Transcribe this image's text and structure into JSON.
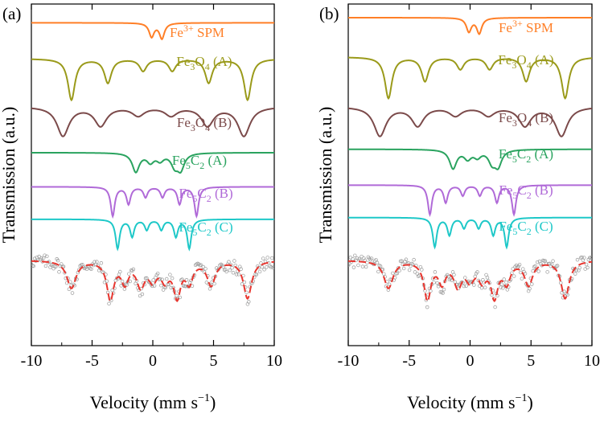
{
  "chart_data": {
    "type": "line",
    "xlabel": "Velocity (mm s",
    "xlabel_sup": "−1",
    "xlabel_close": ")",
    "ylabel": "Transmission (a.u.)",
    "xlim": [
      -10,
      10
    ],
    "xticks": [
      -10,
      -5,
      0,
      5,
      10
    ],
    "tick_labels": [
      "-10",
      "-5",
      "0",
      "5",
      "10"
    ],
    "panels": [
      {
        "label": "(a)",
        "components": [
          {
            "name": "Fe3+ SPM",
            "base": "Fe",
            "sup": "3+",
            "rest": " SPM",
            "color": "#ff7f27",
            "baseline": 0.945,
            "peaks": [
              [
                -0.1,
                0.04,
                0.25
              ],
              [
                0.75,
                0.045,
                0.25
              ]
            ]
          },
          {
            "name": "Fe3O4 (A)",
            "base": "Fe",
            "sub1": "3",
            "mid": "O",
            "sub2": "4",
            "tail": " (A)",
            "color": "#9a9a1a",
            "baseline": 0.84,
            "peaks": [
              [
                -6.7,
                0.12,
                0.35
              ],
              [
                -3.7,
                0.07,
                0.35
              ],
              [
                -0.8,
                0.035,
                0.35
              ],
              [
                1.6,
                0.035,
                0.35
              ],
              [
                4.6,
                0.07,
                0.35
              ],
              [
                7.8,
                0.12,
                0.35
              ]
            ]
          },
          {
            "name": "Fe3O4 (B)",
            "base": "Fe",
            "sub1": "3",
            "mid": "O",
            "sub2": "4",
            "tail": " (B)",
            "color": "#7b4a4a",
            "baseline": 0.7,
            "peaks": [
              [
                -7.4,
                0.085,
                0.6
              ],
              [
                -4.3,
                0.055,
                0.6
              ],
              [
                -1.2,
                0.025,
                0.6
              ],
              [
                1.5,
                0.025,
                0.6
              ],
              [
                4.5,
                0.055,
                0.6
              ],
              [
                7.5,
                0.085,
                0.6
              ]
            ]
          },
          {
            "name": "Fe5C2 (A)",
            "base": "Fe",
            "sub1": "5",
            "mid": "C",
            "sub2": "2",
            "tail": " (A)",
            "color": "#2aa35f",
            "baseline": 0.565,
            "peaks": [
              [
                -1.4,
                0.055,
                0.35
              ],
              [
                -0.2,
                0.025,
                0.35
              ],
              [
                0.6,
                0.02,
                0.35
              ],
              [
                1.8,
                0.035,
                0.35
              ],
              [
                2.3,
                0.045,
                0.35
              ]
            ]
          },
          {
            "name": "Fe5C2 (B)",
            "base": "Fe",
            "sub1": "5",
            "mid": "C",
            "sub2": "2",
            "tail": " (B)",
            "color": "#b06ad8",
            "baseline": 0.465,
            "peaks": [
              [
                -3.3,
                0.085,
                0.2
              ],
              [
                -2.0,
                0.05,
                0.2
              ],
              [
                -0.6,
                0.03,
                0.2
              ],
              [
                0.8,
                0.03,
                0.2
              ],
              [
                2.2,
                0.05,
                0.2
              ],
              [
                3.6,
                0.085,
                0.2
              ]
            ]
          },
          {
            "name": "Fe5C2 (C)",
            "base": "Fe",
            "sub1": "5",
            "mid": "C",
            "sub2": "2",
            "tail": " (C)",
            "color": "#1ec8c8",
            "baseline": 0.37,
            "peaks": [
              [
                -2.9,
                0.085,
                0.2
              ],
              [
                -1.7,
                0.05,
                0.2
              ],
              [
                -0.5,
                0.03,
                0.2
              ],
              [
                0.7,
                0.03,
                0.2
              ],
              [
                1.9,
                0.05,
                0.2
              ],
              [
                3.0,
                0.085,
                0.2
              ]
            ]
          }
        ],
        "measured": {
          "baseline": 0.25,
          "noise": 0.02,
          "points": 220,
          "peaks": [
            [
              -6.7,
              0.08,
              0.45
            ],
            [
              -3.5,
              0.11,
              0.35
            ],
            [
              -2.3,
              0.06,
              0.35
            ],
            [
              -1.0,
              0.07,
              0.4
            ],
            [
              0.0,
              0.05,
              0.4
            ],
            [
              1.0,
              0.05,
              0.4
            ],
            [
              2.0,
              0.1,
              0.35
            ],
            [
              3.0,
              0.06,
              0.35
            ],
            [
              4.8,
              0.07,
              0.4
            ],
            [
              7.8,
              0.11,
              0.4
            ]
          ]
        }
      },
      {
        "label": "(b)",
        "components": [
          {
            "name": "Fe3+ SPM",
            "base": "Fe",
            "sup": "3+",
            "rest": " SPM",
            "color": "#ff7f27",
            "baseline": 0.96,
            "peaks": [
              [
                -0.1,
                0.04,
                0.25
              ],
              [
                0.75,
                0.045,
                0.25
              ]
            ]
          },
          {
            "name": "Fe3O4 (A)",
            "base": "Fe",
            "sub1": "3",
            "mid": "O",
            "sub2": "4",
            "tail": " (A)",
            "color": "#9a9a1a",
            "baseline": 0.845,
            "peaks": [
              [
                -6.7,
                0.12,
                0.35
              ],
              [
                -3.7,
                0.07,
                0.35
              ],
              [
                -0.8,
                0.035,
                0.35
              ],
              [
                1.6,
                0.035,
                0.35
              ],
              [
                4.6,
                0.07,
                0.35
              ],
              [
                7.8,
                0.12,
                0.35
              ]
            ]
          },
          {
            "name": "Fe3O4 (B)",
            "base": "Fe",
            "sub1": "3",
            "mid": "O",
            "sub2": "4",
            "tail": " (B)",
            "color": "#7b4a4a",
            "baseline": 0.7,
            "peaks": [
              [
                -7.4,
                0.085,
                0.6
              ],
              [
                -4.3,
                0.055,
                0.6
              ],
              [
                -1.2,
                0.025,
                0.6
              ],
              [
                1.5,
                0.025,
                0.6
              ],
              [
                4.5,
                0.055,
                0.6
              ],
              [
                7.5,
                0.085,
                0.6
              ]
            ]
          },
          {
            "name": "Fe5C2 (A)",
            "base": "Fe",
            "sub1": "5",
            "mid": "C",
            "sub2": "2",
            "tail": " (A)",
            "color": "#2aa35f",
            "baseline": 0.575,
            "peaks": [
              [
                -1.4,
                0.055,
                0.35
              ],
              [
                -0.2,
                0.025,
                0.35
              ],
              [
                0.6,
                0.02,
                0.35
              ],
              [
                1.8,
                0.035,
                0.35
              ],
              [
                2.3,
                0.045,
                0.35
              ]
            ]
          },
          {
            "name": "Fe5C2 (B)",
            "base": "Fe",
            "sub1": "5",
            "mid": "C",
            "sub2": "2",
            "tail": " (B)",
            "color": "#b06ad8",
            "baseline": 0.47,
            "peaks": [
              [
                -3.3,
                0.085,
                0.2
              ],
              [
                -2.0,
                0.05,
                0.2
              ],
              [
                -0.6,
                0.03,
                0.2
              ],
              [
                0.8,
                0.03,
                0.2
              ],
              [
                2.2,
                0.05,
                0.2
              ],
              [
                3.6,
                0.085,
                0.2
              ]
            ]
          },
          {
            "name": "Fe5C2 (C)",
            "base": "Fe",
            "sub1": "5",
            "mid": "C",
            "sub2": "2",
            "tail": " (C)",
            "color": "#1ec8c8",
            "baseline": 0.375,
            "peaks": [
              [
                -2.9,
                0.085,
                0.2
              ],
              [
                -1.7,
                0.05,
                0.2
              ],
              [
                -0.5,
                0.03,
                0.2
              ],
              [
                0.7,
                0.03,
                0.2
              ],
              [
                1.9,
                0.05,
                0.2
              ],
              [
                3.0,
                0.085,
                0.2
              ]
            ]
          }
        ],
        "measured": {
          "baseline": 0.25,
          "noise": 0.02,
          "points": 220,
          "peaks": [
            [
              -6.7,
              0.08,
              0.45
            ],
            [
              -3.5,
              0.11,
              0.35
            ],
            [
              -2.3,
              0.06,
              0.35
            ],
            [
              -1.0,
              0.07,
              0.4
            ],
            [
              0.0,
              0.05,
              0.4
            ],
            [
              1.0,
              0.05,
              0.4
            ],
            [
              2.0,
              0.1,
              0.35
            ],
            [
              3.0,
              0.06,
              0.35
            ],
            [
              4.8,
              0.07,
              0.4
            ],
            [
              7.8,
              0.11,
              0.4
            ]
          ]
        }
      }
    ],
    "fit_color": "#e8362f",
    "point_color": "#9a9a9a"
  }
}
